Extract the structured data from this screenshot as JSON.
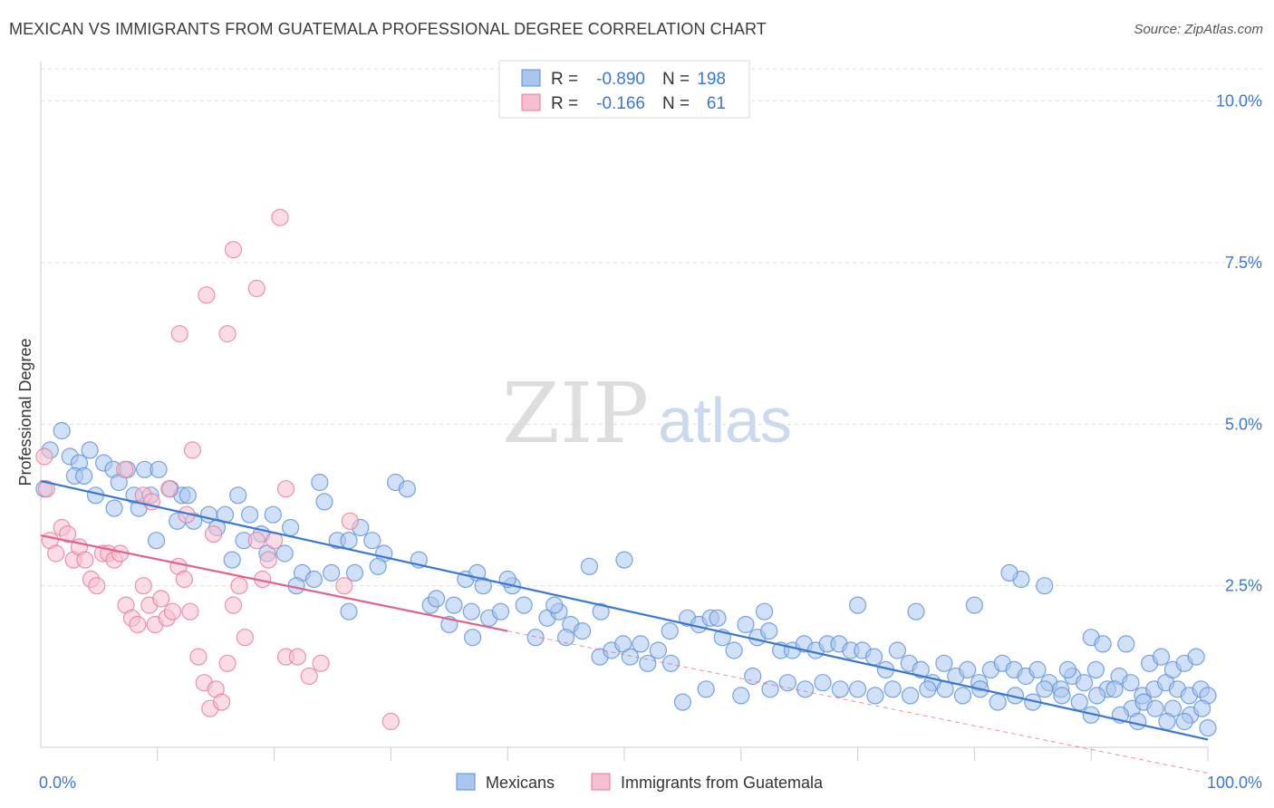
{
  "title": "MEXICAN VS IMMIGRANTS FROM GUATEMALA PROFESSIONAL DEGREE CORRELATION CHART",
  "source": "Source: ZipAtlas.com",
  "watermark": {
    "zip": "ZIP",
    "atlas": "atlas"
  },
  "colors": {
    "blue": "#5b8fd6",
    "blue_fill": "#a9c6ef",
    "blue_line": "#3a78d0",
    "pink": "#e8799c",
    "pink_fill": "#f5bfd0",
    "pink_line": "#e0628d",
    "axis_label": "#3a78d0"
  },
  "legend_box": {
    "rows": [
      {
        "r_label": "R =",
        "r_value": "-0.890",
        "n_label": "N =",
        "n_value": "198"
      },
      {
        "r_label": "R =",
        "r_value": "-0.166",
        "n_label": "N =",
        "n_value": "61"
      }
    ]
  },
  "bottom_legend": [
    "Mexicans",
    "Immigrants from Guatemala"
  ],
  "chart_data": {
    "type": "scatter",
    "title": "MEXICAN VS IMMIGRANTS FROM GUATEMALA PROFESSIONAL DEGREE CORRELATION CHART",
    "ylabel": "Professional Degree",
    "xlabel": "",
    "xlim": [
      0,
      100
    ],
    "ylim": [
      0,
      10.5
    ],
    "x_tick_labels": [
      "0.0%",
      "100.0%"
    ],
    "y_ticks": [
      2.5,
      5.0,
      7.5,
      10.0
    ],
    "y_tick_labels": [
      "2.5%",
      "5.0%",
      "7.5%",
      "10.0%"
    ],
    "grid": "horizontal dashed",
    "legend": "top-center",
    "series": [
      {
        "name": "Mexicans",
        "r": -0.89,
        "n": 198,
        "trend": {
          "x": [
            0,
            100
          ],
          "y": [
            4.12,
            0.12
          ],
          "style": "solid"
        },
        "points": [
          [
            0.3,
            4.0
          ],
          [
            1.8,
            4.9
          ],
          [
            0.8,
            4.6
          ],
          [
            2.5,
            4.5
          ],
          [
            3.3,
            4.4
          ],
          [
            4.2,
            4.6
          ],
          [
            2.9,
            4.2
          ],
          [
            3.7,
            4.2
          ],
          [
            5.4,
            4.4
          ],
          [
            6.2,
            4.3
          ],
          [
            4.7,
            3.9
          ],
          [
            6.7,
            4.1
          ],
          [
            7.4,
            4.3
          ],
          [
            8.0,
            3.9
          ],
          [
            8.9,
            4.3
          ],
          [
            9.4,
            3.9
          ],
          [
            10.1,
            4.3
          ],
          [
            6.3,
            3.7
          ],
          [
            8.4,
            3.7
          ],
          [
            11.1,
            4.0
          ],
          [
            12.1,
            3.9
          ],
          [
            11.7,
            3.5
          ],
          [
            13.1,
            3.5
          ],
          [
            14.4,
            3.6
          ],
          [
            15.8,
            3.6
          ],
          [
            12.6,
            3.9
          ],
          [
            9.9,
            3.2
          ],
          [
            16.9,
            3.9
          ],
          [
            17.9,
            3.6
          ],
          [
            18.9,
            3.3
          ],
          [
            19.9,
            3.6
          ],
          [
            21.4,
            3.4
          ],
          [
            17.4,
            3.2
          ],
          [
            15.1,
            3.4
          ],
          [
            16.4,
            2.9
          ],
          [
            23.9,
            4.1
          ],
          [
            24.3,
            3.8
          ],
          [
            20.9,
            3.0
          ],
          [
            22.4,
            2.7
          ],
          [
            25.4,
            3.2
          ],
          [
            26.4,
            3.2
          ],
          [
            27.4,
            3.4
          ],
          [
            28.4,
            3.2
          ],
          [
            29.4,
            3.0
          ],
          [
            24.9,
            2.7
          ],
          [
            26.9,
            2.7
          ],
          [
            28.9,
            2.8
          ],
          [
            30.4,
            4.1
          ],
          [
            31.4,
            4.0
          ],
          [
            19.4,
            3.0
          ],
          [
            23.4,
            2.6
          ],
          [
            21.9,
            2.5
          ],
          [
            26.4,
            2.1
          ],
          [
            32.4,
            2.9
          ],
          [
            33.4,
            2.2
          ],
          [
            33.9,
            2.3
          ],
          [
            35.4,
            2.2
          ],
          [
            35.0,
            1.9
          ],
          [
            36.4,
            2.6
          ],
          [
            37.4,
            2.7
          ],
          [
            37.9,
            2.5
          ],
          [
            38.4,
            2.0
          ],
          [
            36.9,
            2.1
          ],
          [
            39.4,
            2.1
          ],
          [
            37.0,
            1.7
          ],
          [
            40.4,
            2.5
          ],
          [
            41.4,
            2.2
          ],
          [
            42.4,
            1.7
          ],
          [
            43.4,
            2.0
          ],
          [
            44.4,
            2.1
          ],
          [
            45.4,
            1.9
          ],
          [
            46.4,
            1.8
          ],
          [
            47.9,
            1.4
          ],
          [
            48.9,
            1.5
          ],
          [
            49.9,
            1.6
          ],
          [
            51.4,
            1.6
          ],
          [
            52.9,
            1.5
          ],
          [
            53.9,
            1.8
          ],
          [
            55.4,
            2.0
          ],
          [
            56.4,
            1.9
          ],
          [
            57.4,
            2.0
          ],
          [
            59.4,
            1.5
          ],
          [
            58.4,
            1.7
          ],
          [
            60.4,
            1.9
          ],
          [
            61.4,
            1.7
          ],
          [
            62.4,
            1.8
          ],
          [
            63.4,
            1.5
          ],
          [
            64.4,
            1.5
          ],
          [
            65.4,
            1.6
          ],
          [
            66.4,
            1.5
          ],
          [
            67.4,
            1.6
          ],
          [
            68.4,
            1.6
          ],
          [
            69.4,
            1.5
          ],
          [
            70.4,
            1.5
          ],
          [
            71.4,
            1.4
          ],
          [
            72.4,
            1.2
          ],
          [
            73.4,
            1.5
          ],
          [
            74.4,
            1.3
          ],
          [
            75.4,
            1.2
          ],
          [
            76.4,
            1.0
          ],
          [
            77.4,
            1.3
          ],
          [
            78.4,
            1.1
          ],
          [
            79.4,
            1.2
          ],
          [
            80.4,
            1.0
          ],
          [
            81.4,
            1.2
          ],
          [
            82.4,
            1.3
          ],
          [
            83.4,
            1.2
          ],
          [
            84.4,
            1.1
          ],
          [
            85.4,
            1.2
          ],
          [
            86.4,
            1.0
          ],
          [
            87.4,
            0.9
          ],
          [
            88.4,
            1.1
          ],
          [
            89.4,
            1.0
          ],
          [
            90.4,
            1.2
          ],
          [
            91.4,
            0.9
          ],
          [
            92.4,
            1.1
          ],
          [
            93.4,
            1.0
          ],
          [
            94.4,
            0.8
          ],
          [
            95.4,
            0.9
          ],
          [
            96.4,
            1.0
          ],
          [
            97.4,
            0.9
          ],
          [
            98.4,
            0.8
          ],
          [
            99.4,
            0.9
          ],
          [
            100.0,
            0.8
          ],
          [
            47.0,
            2.8
          ],
          [
            50.0,
            2.9
          ],
          [
            58.0,
            2.0
          ],
          [
            62.0,
            2.1
          ],
          [
            70.0,
            2.2
          ],
          [
            75.0,
            2.1
          ],
          [
            80.0,
            2.2
          ],
          [
            84.0,
            2.6
          ],
          [
            83.0,
            2.7
          ],
          [
            86.0,
            2.5
          ],
          [
            90.0,
            1.7
          ],
          [
            91.0,
            1.6
          ],
          [
            93.0,
            1.6
          ],
          [
            95.0,
            1.3
          ],
          [
            96.0,
            1.4
          ],
          [
            97.0,
            1.2
          ],
          [
            98.0,
            1.3
          ],
          [
            99.0,
            1.4
          ],
          [
            88.0,
            1.2
          ],
          [
            86.0,
            0.9
          ],
          [
            87.5,
            0.8
          ],
          [
            89.0,
            0.7
          ],
          [
            90.5,
            0.8
          ],
          [
            92.0,
            0.9
          ],
          [
            93.5,
            0.6
          ],
          [
            94.5,
            0.7
          ],
          [
            95.5,
            0.6
          ],
          [
            97.0,
            0.6
          ],
          [
            98.5,
            0.5
          ],
          [
            99.5,
            0.6
          ],
          [
            90.0,
            0.5
          ],
          [
            92.5,
            0.5
          ],
          [
            94.0,
            0.4
          ],
          [
            96.5,
            0.4
          ],
          [
            98.0,
            0.4
          ],
          [
            100.0,
            0.3
          ],
          [
            85.0,
            0.7
          ],
          [
            83.5,
            0.8
          ],
          [
            82.0,
            0.7
          ],
          [
            80.5,
            0.9
          ],
          [
            79.0,
            0.8
          ],
          [
            77.5,
            0.9
          ],
          [
            76.0,
            0.9
          ],
          [
            74.5,
            0.8
          ],
          [
            73.0,
            0.9
          ],
          [
            71.5,
            0.8
          ],
          [
            70.0,
            0.9
          ],
          [
            68.5,
            0.9
          ],
          [
            67.0,
            1.0
          ],
          [
            65.5,
            0.9
          ],
          [
            64.0,
            1.0
          ],
          [
            62.5,
            0.9
          ],
          [
            61.0,
            1.1
          ],
          [
            60.0,
            0.8
          ],
          [
            57.0,
            0.9
          ],
          [
            55.0,
            0.7
          ],
          [
            54.0,
            1.3
          ],
          [
            52.0,
            1.3
          ],
          [
            50.5,
            1.4
          ],
          [
            45.0,
            1.7
          ],
          [
            44.0,
            2.2
          ],
          [
            40.0,
            2.6
          ],
          [
            48.0,
            2.1
          ]
        ]
      },
      {
        "name": "Immigrants from Guatemala",
        "r": -0.166,
        "n": 61,
        "trend": {
          "x": [
            0,
            40
          ],
          "y": [
            3.28,
            1.8
          ],
          "style": "solid",
          "extension": {
            "x": [
              40,
              100
            ],
            "y": [
              1.8,
              -0.42
            ],
            "style": "dashed"
          }
        },
        "points": [
          [
            0.3,
            4.5
          ],
          [
            0.5,
            4.0
          ],
          [
            0.8,
            3.2
          ],
          [
            1.3,
            3.0
          ],
          [
            1.8,
            3.4
          ],
          [
            2.3,
            3.3
          ],
          [
            2.8,
            2.9
          ],
          [
            3.3,
            3.1
          ],
          [
            3.8,
            2.9
          ],
          [
            4.3,
            2.6
          ],
          [
            4.8,
            2.5
          ],
          [
            5.3,
            3.0
          ],
          [
            5.8,
            3.0
          ],
          [
            6.3,
            2.9
          ],
          [
            6.8,
            3.0
          ],
          [
            7.3,
            2.2
          ],
          [
            7.8,
            2.0
          ],
          [
            8.3,
            1.9
          ],
          [
            8.8,
            2.5
          ],
          [
            9.3,
            2.2
          ],
          [
            9.8,
            1.9
          ],
          [
            10.3,
            2.3
          ],
          [
            10.8,
            2.0
          ],
          [
            11.3,
            2.1
          ],
          [
            11.8,
            2.8
          ],
          [
            12.3,
            2.6
          ],
          [
            12.8,
            2.1
          ],
          [
            13.5,
            1.4
          ],
          [
            14.0,
            1.0
          ],
          [
            14.5,
            0.6
          ],
          [
            15.0,
            0.9
          ],
          [
            15.5,
            0.7
          ],
          [
            16.0,
            1.3
          ],
          [
            16.5,
            2.2
          ],
          [
            17.0,
            2.5
          ],
          [
            17.5,
            1.7
          ],
          [
            18.5,
            3.2
          ],
          [
            19.0,
            2.6
          ],
          [
            19.5,
            2.9
          ],
          [
            21.0,
            4.0
          ],
          [
            20.0,
            3.2
          ],
          [
            8.8,
            3.9
          ],
          [
            9.5,
            3.8
          ],
          [
            11.0,
            4.0
          ],
          [
            12.5,
            3.6
          ],
          [
            13.0,
            4.6
          ],
          [
            7.2,
            4.3
          ],
          [
            14.8,
            3.3
          ],
          [
            11.9,
            6.4
          ],
          [
            14.2,
            7.0
          ],
          [
            16.0,
            6.4
          ],
          [
            16.5,
            7.7
          ],
          [
            18.5,
            7.1
          ],
          [
            20.5,
            8.2
          ],
          [
            26.0,
            2.5
          ],
          [
            26.5,
            3.5
          ],
          [
            21.0,
            1.4
          ],
          [
            22.0,
            1.4
          ],
          [
            23.0,
            1.1
          ],
          [
            24.0,
            1.3
          ],
          [
            30.0,
            0.4
          ]
        ]
      }
    ]
  }
}
